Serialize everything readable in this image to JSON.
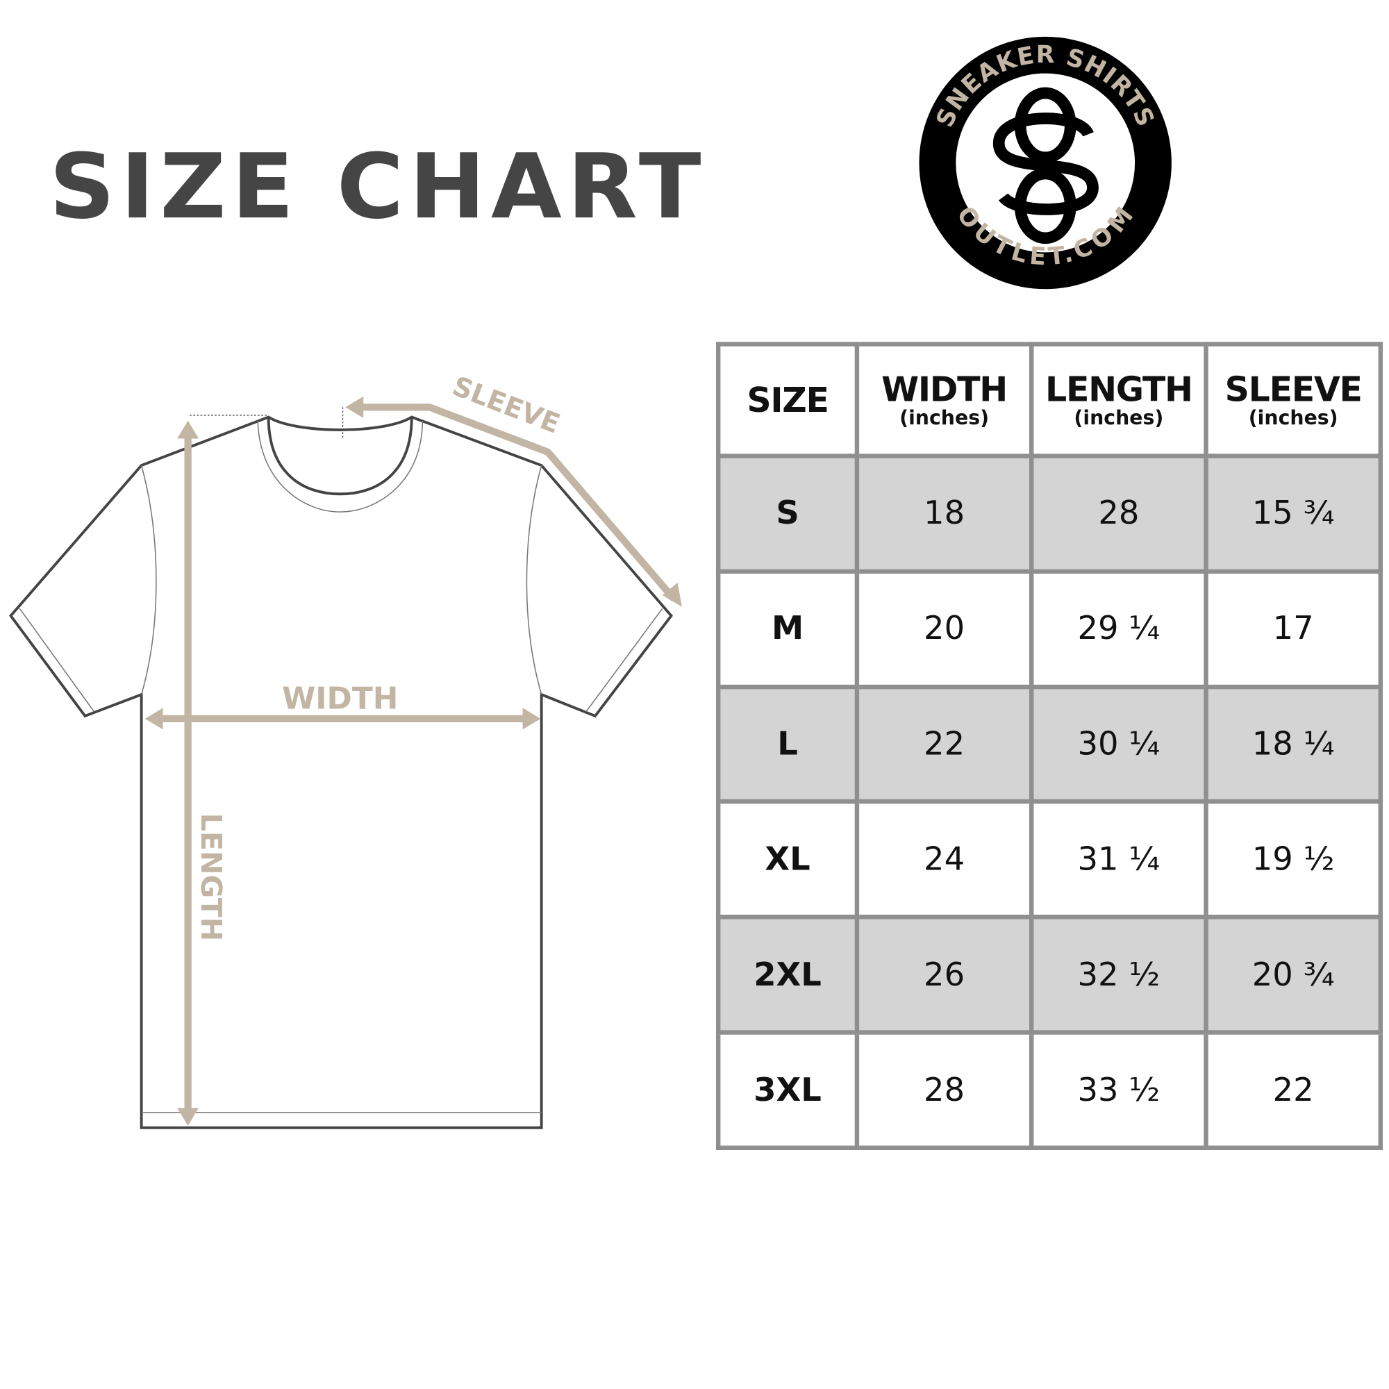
{
  "title": "SIZE CHART",
  "logo": {
    "top_text": "SNEAKER SHIRTS",
    "bottom_text": "OUTLET.COM",
    "monogram": "SO"
  },
  "diagram": {
    "sleeve_label": "SLEEVE",
    "width_label": "WIDTH",
    "length_label": "LENGTH"
  },
  "colors": {
    "arrow": "#c3b5a3",
    "title": "#454545",
    "row_shade": "#d4d4d4",
    "border": "#8f8f8f"
  },
  "table": {
    "headers": [
      {
        "label": "SIZE",
        "unit": ""
      },
      {
        "label": "WIDTH",
        "unit": "(inches)"
      },
      {
        "label": "LENGTH",
        "unit": "(inches)"
      },
      {
        "label": "SLEEVE",
        "unit": "(inches)"
      }
    ],
    "rows": [
      [
        "S",
        "18",
        "28",
        "15 ¾"
      ],
      [
        "M",
        "20",
        "29 ¼",
        "17"
      ],
      [
        "L",
        "22",
        "30 ¼",
        "18 ¼"
      ],
      [
        "XL",
        "24",
        "31 ¼",
        "19 ½"
      ],
      [
        "2XL",
        "26",
        "32 ½",
        "20 ¾"
      ],
      [
        "3XL",
        "28",
        "33 ½",
        "22"
      ]
    ]
  }
}
